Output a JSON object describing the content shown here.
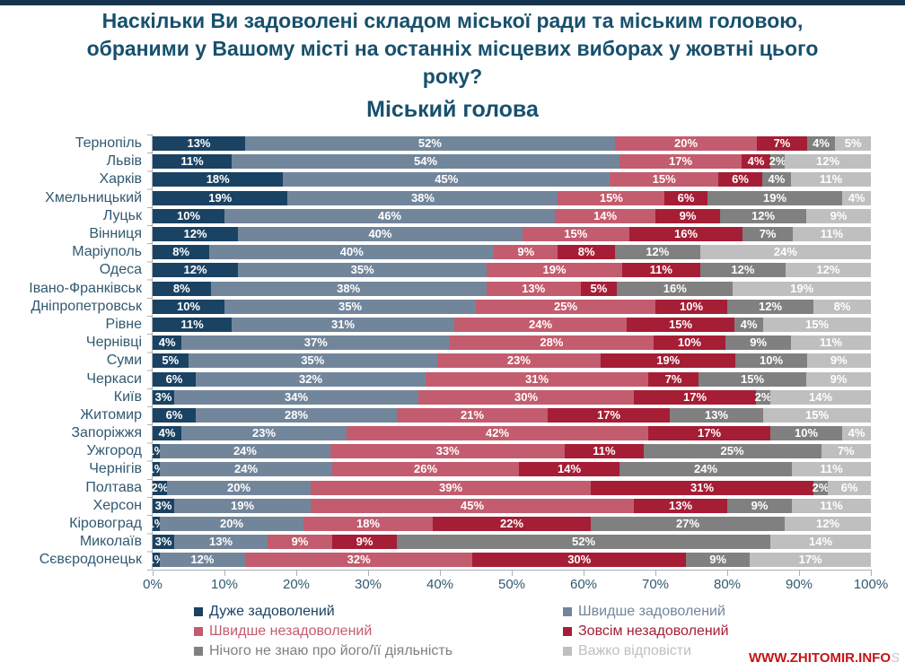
{
  "page": {
    "watermark": "WWW.ZHITOMIR.INFO",
    "watermark_suffix": "S"
  },
  "chart_data": {
    "type": "bar",
    "orientation": "horizontal-stacked",
    "title": "Наскільки Ви задоволені складом міської ради та міським головою, обраними у Вашому місті на останніх місцевих виборах у жовтні цього року?",
    "title_lines": [
      "Наскільки Ви задоволені складом міської ради та міським головою,",
      "обраними у Вашому місті на останніх місцевих виборах у жовтні цього",
      "року?"
    ],
    "subtitle": "Міський голова",
    "value_suffix": "%",
    "xlim": [
      0,
      100
    ],
    "x_ticks": [
      "0%",
      "10%",
      "20%",
      "30%",
      "40%",
      "50%",
      "60%",
      "70%",
      "80%",
      "90%",
      "100%"
    ],
    "grid": false,
    "legend_position": "bottom",
    "legend_columns": [
      [
        0,
        2,
        4
      ],
      [
        1,
        3,
        5
      ]
    ],
    "series": [
      {
        "name": "Дуже задоволений",
        "color": "#1a4263"
      },
      {
        "name": "Швидше задоволений",
        "color": "#72869b"
      },
      {
        "name": "Швидше незадоволений",
        "color": "#c35c6e"
      },
      {
        "name": "Зовсім незадоволений",
        "color": "#a51e35"
      },
      {
        "name": "Нічого не знаю про його/її діяльність",
        "color": "#808080"
      },
      {
        "name": "Важко відповісти",
        "color": "#bfbfbf"
      }
    ],
    "categories": [
      "Тернопіль",
      "Львів",
      "Харків",
      "Хмельницький",
      "Луцьк",
      "Вінниця",
      "Маріуполь",
      "Одеса",
      "Івано-Франківськ",
      "Дніпропетровськ",
      "Рівне",
      "Чернівці",
      "Суми",
      "Черкаси",
      "Київ",
      "Житомир",
      "Запоріжжя",
      "Ужгород",
      "Чернігів",
      "Полтава",
      "Херсон",
      "Кіровоград",
      "Миколаїв",
      "Сєвєродонецьк"
    ],
    "values": [
      [
        13,
        52,
        20,
        7,
        4,
        5
      ],
      [
        11,
        54,
        17,
        4,
        2,
        12
      ],
      [
        18,
        45,
        15,
        6,
        4,
        11
      ],
      [
        19,
        38,
        15,
        6,
        19,
        4
      ],
      [
        10,
        46,
        14,
        9,
        12,
        9
      ],
      [
        12,
        40,
        15,
        16,
        7,
        11
      ],
      [
        8,
        40,
        9,
        8,
        12,
        24
      ],
      [
        12,
        35,
        19,
        11,
        12,
        12
      ],
      [
        8,
        38,
        13,
        5,
        16,
        19
      ],
      [
        10,
        35,
        25,
        10,
        12,
        8
      ],
      [
        11,
        31,
        24,
        15,
        4,
        15
      ],
      [
        4,
        37,
        28,
        10,
        9,
        11
      ],
      [
        5,
        35,
        23,
        19,
        10,
        9
      ],
      [
        6,
        32,
        31,
        7,
        15,
        9
      ],
      [
        3,
        34,
        30,
        17,
        2,
        14
      ],
      [
        6,
        28,
        21,
        17,
        13,
        15
      ],
      [
        4,
        23,
        42,
        17,
        10,
        4
      ],
      [
        1,
        24,
        33,
        11,
        25,
        7
      ],
      [
        1,
        24,
        26,
        14,
        24,
        11
      ],
      [
        2,
        20,
        39,
        31,
        2,
        6
      ],
      [
        3,
        19,
        45,
        13,
        9,
        11
      ],
      [
        1,
        20,
        18,
        22,
        27,
        12
      ],
      [
        3,
        13,
        9,
        9,
        52,
        14
      ],
      [
        1,
        12,
        32,
        30,
        9,
        17
      ]
    ]
  }
}
